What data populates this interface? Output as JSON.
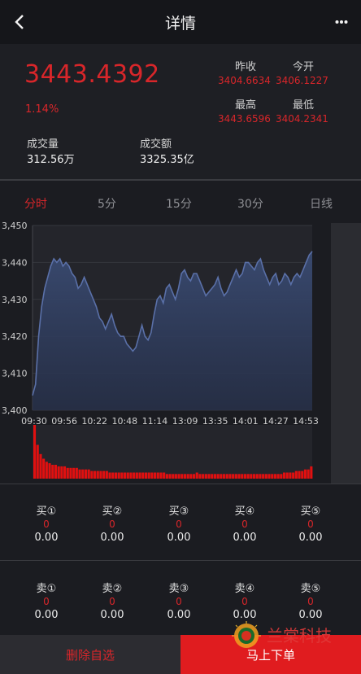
{
  "header": {
    "title": "详情",
    "back_icon": "chevron-left-icon",
    "more_icon": "more-dots-icon"
  },
  "summary": {
    "price": "3443.4392",
    "change_pct": "1.14%",
    "volume_label": "成交量",
    "volume_value": "312.56万",
    "amount_label": "成交额",
    "amount_value": "3325.35亿",
    "prev_close_label": "昨收",
    "prev_close_value": "3404.6634",
    "open_label": "今开",
    "open_value": "3406.1227",
    "high_label": "最高",
    "high_value": "3443.6596",
    "low_label": "最低",
    "low_value": "3404.2341"
  },
  "tabs": [
    {
      "label": "分时",
      "active": true
    },
    {
      "label": "5分",
      "active": false
    },
    {
      "label": "15分",
      "active": false
    },
    {
      "label": "30分",
      "active": false
    },
    {
      "label": "日线",
      "active": false
    }
  ],
  "chart_data": {
    "type": "area",
    "x_ticks": [
      "09:30",
      "09:56",
      "10:22",
      "10:48",
      "11:14",
      "13:09",
      "13:35",
      "14:01",
      "14:27",
      "14:53"
    ],
    "y_ticks": [
      "3,450",
      "3,440",
      "3,430",
      "3,420",
      "3,410",
      "3,400"
    ],
    "ylim": [
      3400,
      3450
    ],
    "price_series": [
      3404,
      3407,
      3420,
      3428,
      3433,
      3436,
      3439,
      3441,
      3440,
      3441,
      3439,
      3440,
      3439,
      3437,
      3436,
      3433,
      3434,
      3436,
      3434,
      3432,
      3430,
      3428,
      3425,
      3424,
      3422,
      3424,
      3426,
      3423,
      3421,
      3420,
      3420,
      3418,
      3417,
      3416,
      3417,
      3420,
      3423,
      3420,
      3419,
      3421,
      3426,
      3430,
      3431,
      3429,
      3433,
      3434,
      3432,
      3430,
      3433,
      3437,
      3438,
      3436,
      3435,
      3437,
      3437,
      3435,
      3433,
      3431,
      3432,
      3433,
      3434,
      3436,
      3433,
      3431,
      3432,
      3434,
      3436,
      3438,
      3436,
      3437,
      3440,
      3440,
      3439,
      3438,
      3440,
      3441,
      3438,
      3436,
      3434,
      3436,
      3437,
      3434,
      3435,
      3437,
      3436,
      3434,
      3436,
      3437,
      3436,
      3438,
      3440,
      3442,
      3443
    ],
    "volume_series": [
      35,
      22,
      16,
      13,
      11,
      10,
      9,
      9,
      8,
      8,
      8,
      7,
      7,
      7,
      7,
      6,
      6,
      6,
      6,
      5,
      5,
      5,
      5,
      5,
      5,
      4,
      4,
      4,
      4,
      4,
      4,
      4,
      4,
      4,
      4,
      4,
      4,
      4,
      4,
      4,
      4,
      4,
      4,
      4,
      3,
      3,
      3,
      3,
      3,
      3,
      3,
      3,
      3,
      3,
      4,
      3,
      3,
      3,
      3,
      3,
      3,
      3,
      3,
      3,
      3,
      3,
      3,
      3,
      3,
      3,
      3,
      3,
      3,
      3,
      3,
      3,
      3,
      3,
      3,
      3,
      3,
      3,
      3,
      4,
      4,
      4,
      4,
      5,
      5,
      5,
      6,
      6,
      8
    ],
    "line_color": "#5a70a8",
    "volume_color": "#e01010",
    "grid": true
  },
  "order_book": {
    "buy": [
      {
        "name": "买①",
        "count": "0",
        "price": "0.00"
      },
      {
        "name": "买②",
        "count": "0",
        "price": "0.00"
      },
      {
        "name": "买③",
        "count": "0",
        "price": "0.00"
      },
      {
        "name": "买④",
        "count": "0",
        "price": "0.00"
      },
      {
        "name": "买⑤",
        "count": "0",
        "price": "0.00"
      }
    ],
    "sell": [
      {
        "name": "卖①",
        "count": "0",
        "price": "0.00"
      },
      {
        "name": "卖②",
        "count": "0",
        "price": "0.00"
      },
      {
        "name": "卖③",
        "count": "0",
        "price": "0.00"
      },
      {
        "name": "卖④",
        "count": "0",
        "price": "0.00"
      },
      {
        "name": "卖⑤",
        "count": "0",
        "price": "0.00"
      }
    ]
  },
  "footer": {
    "delete_label": "删除自选",
    "order_label": "马上下单"
  },
  "watermark": {
    "text": "兰棠科技",
    "logo_icon": "sunflower-logo-icon"
  },
  "colors": {
    "up": "#d8262a",
    "background": "#1b1c21",
    "order_button": "#e01c1f"
  }
}
